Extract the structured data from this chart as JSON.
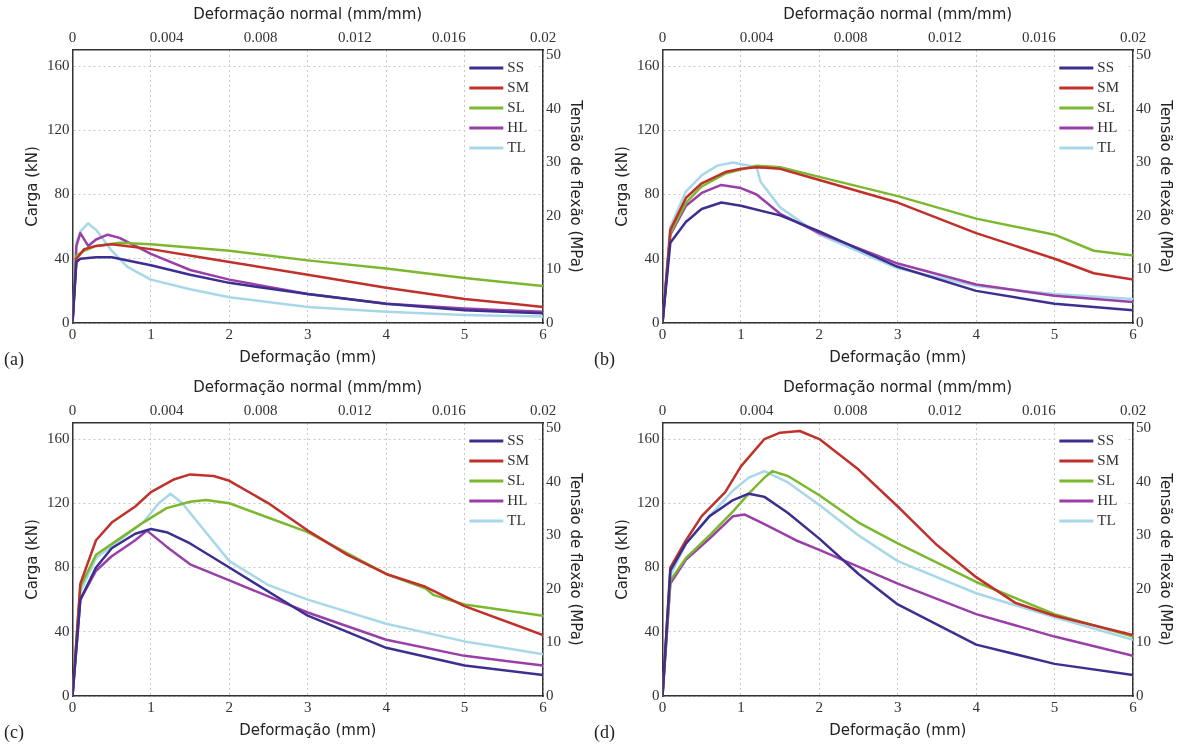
{
  "chart_data": [
    {
      "type": "line",
      "x2label": "Deformação normal (mm/mm)",
      "xlabel": "Deformação (mm)",
      "ylabel": "Carga (kN)",
      "y2label": "Tensão de flexão (MPa)",
      "xlim": [
        0,
        6
      ],
      "xticks": [
        0,
        1,
        2,
        3,
        4,
        5,
        6
      ],
      "x2lim": [
        0,
        0.02
      ],
      "x2ticks": [
        0,
        0.004,
        0.008,
        0.012,
        0.016,
        0.02
      ],
      "ylim": [
        0,
        170
      ],
      "yticks": [
        0,
        40,
        80,
        120,
        160
      ],
      "y2lim": [
        0,
        51
      ],
      "y2ticks": [
        0,
        10,
        20,
        30,
        40,
        50
      ],
      "grid": true,
      "legend": "top right",
      "marker": "none",
      "line_style": "solid",
      "annotations": [
        "(a)"
      ],
      "series": [
        {
          "name": "SS",
          "color": "#3b2f8f",
          "x": [
            0,
            0.05,
            0.1,
            0.3,
            0.5,
            1,
            1.5,
            2,
            3,
            4,
            5,
            6
          ],
          "values": [
            0,
            38,
            40,
            41,
            41,
            36,
            30,
            25,
            18,
            12,
            8,
            6
          ]
        },
        {
          "name": "SM",
          "color": "#c0312b",
          "x": [
            0,
            0.05,
            0.15,
            0.3,
            0.5,
            1,
            2,
            3,
            4,
            5,
            6
          ],
          "values": [
            0,
            40,
            46,
            48,
            49,
            46,
            38,
            30,
            22,
            15,
            10
          ]
        },
        {
          "name": "SL",
          "color": "#7cb82f",
          "x": [
            0,
            0.05,
            0.15,
            0.3,
            0.6,
            1,
            2,
            3,
            4,
            5,
            6
          ],
          "values": [
            0,
            42,
            45,
            48,
            50,
            49,
            45,
            39,
            34,
            28,
            23
          ]
        },
        {
          "name": "HL",
          "color": "#9a3fa8",
          "x": [
            0,
            0.05,
            0.1,
            0.2,
            0.3,
            0.45,
            0.6,
            1,
            1.5,
            2,
            3,
            4,
            5,
            6
          ],
          "values": [
            0,
            48,
            56,
            48,
            52,
            55,
            53,
            43,
            33,
            27,
            18,
            12,
            9,
            7
          ]
        },
        {
          "name": "TL",
          "color": "#a8d8e8",
          "x": [
            0,
            0.05,
            0.1,
            0.2,
            0.3,
            0.5,
            0.7,
            1,
            1.5,
            2,
            3,
            4,
            5,
            6
          ],
          "values": [
            0,
            50,
            57,
            62,
            58,
            45,
            35,
            27,
            21,
            16,
            10,
            7,
            5,
            4
          ]
        }
      ]
    },
    {
      "type": "line",
      "x2label": "Deformação normal (mm/mm)",
      "xlabel": "Deformação (mm)",
      "ylabel": "Carga (kN)",
      "y2label": "Tensão de flexão (MPa)",
      "xlim": [
        0,
        6
      ],
      "xticks": [
        0,
        1,
        2,
        3,
        4,
        5,
        6
      ],
      "x2lim": [
        0,
        0.02
      ],
      "x2ticks": [
        0,
        0.004,
        0.008,
        0.012,
        0.016,
        0.02
      ],
      "ylim": [
        0,
        170
      ],
      "yticks": [
        0,
        40,
        80,
        120,
        160
      ],
      "y2lim": [
        0,
        51
      ],
      "y2ticks": [
        0,
        10,
        20,
        30,
        40,
        50
      ],
      "grid": true,
      "legend": "top right",
      "marker": "none",
      "line_style": "solid",
      "annotations": [
        "(b)"
      ],
      "series": [
        {
          "name": "SS",
          "color": "#3b2f8f",
          "x": [
            0,
            0.1,
            0.3,
            0.5,
            0.75,
            1,
            1.5,
            2,
            3,
            4,
            5,
            6
          ],
          "values": [
            0,
            50,
            63,
            71,
            75,
            73,
            67,
            57,
            35,
            20,
            12,
            8
          ]
        },
        {
          "name": "SM",
          "color": "#c0312b",
          "x": [
            0,
            0.1,
            0.3,
            0.5,
            0.8,
            1,
            1.2,
            1.5,
            2,
            3,
            4,
            5,
            5.5,
            6
          ],
          "values": [
            0,
            58,
            78,
            87,
            94,
            96,
            97,
            96,
            89,
            75,
            56,
            40,
            31,
            27
          ]
        },
        {
          "name": "SL",
          "color": "#7cb82f",
          "x": [
            0,
            0.1,
            0.3,
            0.5,
            0.8,
            1.2,
            1.5,
            2,
            3,
            4,
            5,
            5.5,
            6
          ],
          "values": [
            0,
            56,
            75,
            85,
            93,
            98,
            97,
            91,
            79,
            65,
            55,
            45,
            42
          ]
        },
        {
          "name": "HL",
          "color": "#9a3fa8",
          "x": [
            0,
            0.1,
            0.3,
            0.5,
            0.75,
            1,
            1.2,
            1.5,
            2,
            3,
            4,
            5,
            6
          ],
          "values": [
            0,
            55,
            73,
            81,
            86,
            84,
            80,
            68,
            56,
            37,
            24,
            17,
            13
          ]
        },
        {
          "name": "TL",
          "color": "#a8d8e8",
          "x": [
            0,
            0.1,
            0.3,
            0.5,
            0.7,
            0.9,
            1.2,
            1.25,
            1.5,
            2,
            3,
            4,
            5,
            6
          ],
          "values": [
            0,
            60,
            82,
            92,
            98,
            100,
            97,
            88,
            72,
            55,
            34,
            23,
            18,
            15
          ]
        }
      ]
    },
    {
      "type": "line",
      "x2label": "Deformação normal (mm/mm)",
      "xlabel": "Deformação (mm)",
      "ylabel": "Carga (kN)",
      "y2label": "Tensão de flexão (MPa)",
      "xlim": [
        0,
        6
      ],
      "xticks": [
        0,
        1,
        2,
        3,
        4,
        5,
        6
      ],
      "x2lim": [
        0,
        0.02
      ],
      "x2ticks": [
        0,
        0.004,
        0.008,
        0.012,
        0.016,
        0.02
      ],
      "ylim": [
        0,
        170
      ],
      "yticks": [
        0,
        40,
        80,
        120,
        160
      ],
      "y2lim": [
        0,
        51
      ],
      "y2ticks": [
        0,
        10,
        20,
        30,
        40,
        50
      ],
      "grid": true,
      "legend": "top right",
      "marker": "none",
      "line_style": "solid",
      "annotations": [
        "(c)"
      ],
      "series": [
        {
          "name": "SS",
          "color": "#3b2f8f",
          "x": [
            0,
            0.1,
            0.3,
            0.5,
            0.8,
            1,
            1.2,
            1.5,
            2,
            3,
            4,
            5,
            6
          ],
          "values": [
            0,
            60,
            80,
            92,
            101,
            104,
            102,
            95,
            80,
            50,
            30,
            19,
            13
          ]
        },
        {
          "name": "SM",
          "color": "#c0312b",
          "x": [
            0,
            0.1,
            0.3,
            0.5,
            0.8,
            1,
            1.3,
            1.5,
            1.8,
            2,
            2.5,
            3,
            3.5,
            4,
            4.5,
            5,
            6
          ],
          "values": [
            0,
            70,
            97,
            108,
            118,
            127,
            135,
            138,
            137,
            134,
            120,
            103,
            88,
            76,
            68,
            56,
            38
          ]
        },
        {
          "name": "SL",
          "color": "#7cb82f",
          "x": [
            0,
            0.1,
            0.3,
            0.6,
            0.9,
            1.2,
            1.5,
            1.7,
            2,
            2.5,
            3,
            3.5,
            4,
            4.5,
            4.6,
            5,
            6
          ],
          "values": [
            0,
            68,
            88,
            98,
            108,
            117,
            121,
            122,
            120,
            111,
            102,
            89,
            76,
            67,
            63,
            57,
            50
          ]
        },
        {
          "name": "HL",
          "color": "#9a3fa8",
          "x": [
            0,
            0.1,
            0.3,
            0.5,
            0.8,
            0.95,
            1.2,
            1.5,
            2,
            3,
            4,
            5,
            6
          ],
          "values": [
            0,
            60,
            78,
            87,
            97,
            103,
            93,
            82,
            72,
            52,
            35,
            25,
            19
          ]
        },
        {
          "name": "TL",
          "color": "#a8d8e8",
          "x": [
            0,
            0.1,
            0.3,
            0.6,
            0.9,
            1.1,
            1.25,
            1.4,
            1.7,
            2,
            2.5,
            3,
            4,
            5,
            6
          ],
          "values": [
            0,
            65,
            86,
            97,
            108,
            120,
            126,
            120,
            102,
            84,
            69,
            60,
            45,
            34,
            26
          ]
        }
      ]
    },
    {
      "type": "line",
      "x2label": "Deformação normal (mm/mm)",
      "xlabel": "Deformação (mm)",
      "ylabel": "Carga (kN)",
      "y2label": "Tensão de flexão (MPa)",
      "xlim": [
        0,
        6
      ],
      "xticks": [
        0,
        1,
        2,
        3,
        4,
        5,
        6
      ],
      "x2lim": [
        0,
        0.02
      ],
      "x2ticks": [
        0,
        0.004,
        0.008,
        0.012,
        0.016,
        0.02
      ],
      "ylim": [
        0,
        170
      ],
      "yticks": [
        0,
        40,
        80,
        120,
        160
      ],
      "y2lim": [
        0,
        51
      ],
      "y2ticks": [
        0,
        10,
        20,
        30,
        40,
        50
      ],
      "grid": true,
      "legend": "top right",
      "marker": "none",
      "line_style": "solid",
      "annotations": [
        "(d)"
      ],
      "series": [
        {
          "name": "SS",
          "color": "#3b2f8f",
          "x": [
            0,
            0.1,
            0.3,
            0.6,
            0.9,
            1.1,
            1.3,
            1.6,
            2,
            2.5,
            3,
            4,
            5,
            6
          ],
          "values": [
            0,
            78,
            95,
            112,
            122,
            126,
            124,
            114,
            98,
            76,
            57,
            32,
            20,
            13
          ]
        },
        {
          "name": "SM",
          "color": "#c0312b",
          "x": [
            0,
            0.1,
            0.3,
            0.5,
            0.8,
            1,
            1.3,
            1.5,
            1.75,
            2,
            2.5,
            3,
            3.5,
            4,
            4.5,
            5,
            6
          ],
          "values": [
            0,
            80,
            97,
            112,
            127,
            143,
            160,
            164,
            165,
            160,
            141,
            118,
            94,
            74,
            58,
            50,
            38
          ]
        },
        {
          "name": "SL",
          "color": "#7cb82f",
          "x": [
            0,
            0.1,
            0.3,
            0.6,
            0.9,
            1.1,
            1.3,
            1.4,
            1.6,
            2,
            2.5,
            3,
            4,
            5,
            6
          ],
          "values": [
            0,
            72,
            86,
            100,
            115,
            126,
            136,
            140,
            137,
            125,
            108,
            95,
            71,
            51,
            37
          ]
        },
        {
          "name": "HL",
          "color": "#9a3fa8",
          "x": [
            0,
            0.1,
            0.3,
            0.6,
            0.9,
            1.05,
            1.3,
            1.7,
            2,
            3,
            4,
            5,
            6
          ],
          "values": [
            0,
            70,
            85,
            98,
            112,
            113,
            107,
            97,
            91,
            70,
            51,
            37,
            25
          ]
        },
        {
          "name": "TL",
          "color": "#a8d8e8",
          "x": [
            0,
            0.1,
            0.3,
            0.6,
            0.9,
            1.1,
            1.3,
            1.6,
            2,
            2.5,
            3,
            4,
            5,
            6
          ],
          "values": [
            0,
            75,
            95,
            112,
            128,
            136,
            140,
            133,
            119,
            100,
            84,
            64,
            49,
            35
          ]
        }
      ]
    }
  ]
}
